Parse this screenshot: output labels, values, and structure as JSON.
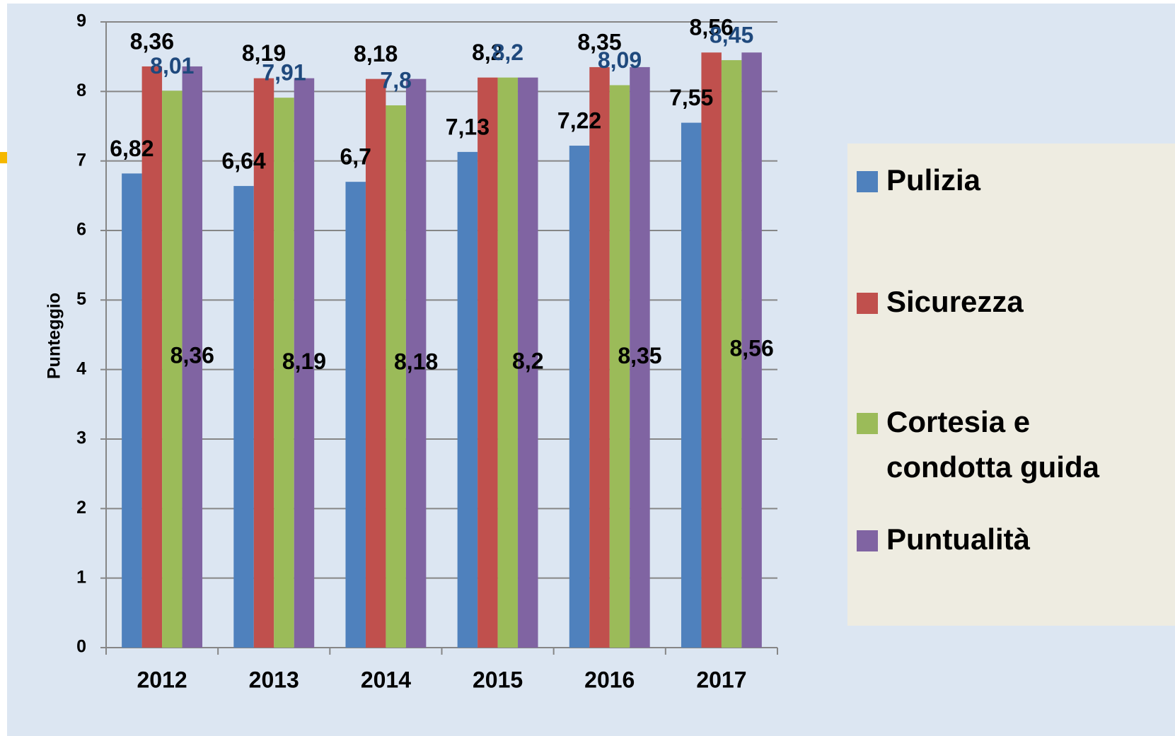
{
  "chart_data": {
    "type": "bar",
    "y_axis_label": "Punteggio",
    "categories": [
      "2012",
      "2013",
      "2014",
      "2015",
      "2016",
      "2017"
    ],
    "series": [
      {
        "name": "Pulizia",
        "color": "#4f81bd",
        "label_color": "#000000",
        "label_position": "above",
        "values": [
          6.82,
          6.64,
          6.7,
          7.13,
          7.22,
          7.55
        ],
        "value_labels": [
          "6,82",
          "6,64",
          "6,7",
          "7,13",
          "7,22",
          "7,55"
        ]
      },
      {
        "name": "Sicurezza",
        "color": "#c0504d",
        "label_color": "#000000",
        "label_position": "above",
        "values": [
          8.36,
          8.19,
          8.18,
          8.2,
          8.35,
          8.56
        ],
        "value_labels": [
          "8,36",
          "8,19",
          "8,18",
          "8,2",
          "8,35",
          "8,56"
        ]
      },
      {
        "name": "Cortesia e condotta guida",
        "color": "#9bbb59",
        "label_color": "#1f497d",
        "label_position": "above",
        "values": [
          8.01,
          7.91,
          7.8,
          8.2,
          8.09,
          8.45
        ],
        "value_labels": [
          "8,01",
          "7,91",
          "7,8",
          "8,2",
          "8,09",
          "8,45"
        ]
      },
      {
        "name": "Puntualità",
        "color": "#8064a2",
        "label_color": "#000000",
        "label_position": "center",
        "values": [
          8.36,
          8.19,
          8.18,
          8.2,
          8.35,
          8.56
        ],
        "value_labels": [
          "8,36",
          "8,19",
          "8,18",
          "8,2",
          "8,35",
          "8,56"
        ]
      }
    ],
    "ylim": [
      0,
      9
    ],
    "yticks": [
      0,
      1,
      2,
      3,
      4,
      5,
      6,
      7,
      8,
      9
    ],
    "grid": true,
    "legend": "right"
  }
}
